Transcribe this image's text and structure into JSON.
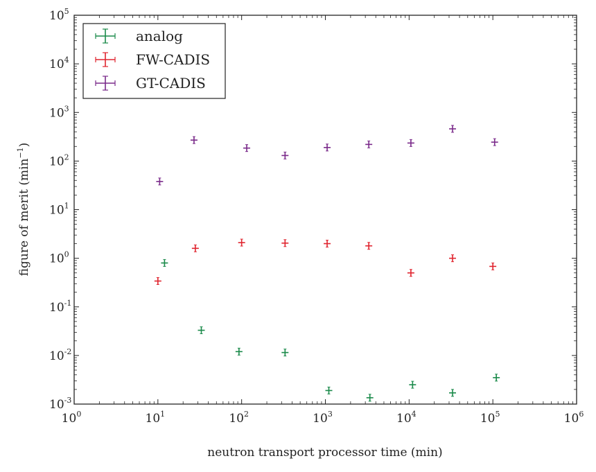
{
  "chart_data": {
    "type": "scatter",
    "title": "",
    "xlabel": "neutron transport processor time (min)",
    "ylabel": "figure of merit (min",
    "ylabel_sup": "−1",
    "ylabel_close": ")",
    "xscale": "log",
    "yscale": "log",
    "xlim": [
      1,
      1000000
    ],
    "ylim": [
      0.001,
      100000
    ],
    "x_ticks": [
      {
        "base": "10",
        "exp": "0",
        "value": 1
      },
      {
        "base": "10",
        "exp": "1",
        "value": 10
      },
      {
        "base": "10",
        "exp": "2",
        "value": 100
      },
      {
        "base": "10",
        "exp": "3",
        "value": 1000
      },
      {
        "base": "10",
        "exp": "4",
        "value": 10000
      },
      {
        "base": "10",
        "exp": "5",
        "value": 100000
      },
      {
        "base": "10",
        "exp": "6",
        "value": 1000000
      }
    ],
    "y_ticks": [
      {
        "base": "10",
        "exp": "-3",
        "value": 0.001
      },
      {
        "base": "10",
        "exp": "-2",
        "value": 0.01
      },
      {
        "base": "10",
        "exp": "-1",
        "value": 0.1
      },
      {
        "base": "10",
        "exp": "0",
        "value": 1
      },
      {
        "base": "10",
        "exp": "1",
        "value": 10
      },
      {
        "base": "10",
        "exp": "2",
        "value": 100
      },
      {
        "base": "10",
        "exp": "3",
        "value": 1000
      },
      {
        "base": "10",
        "exp": "4",
        "value": 10000
      },
      {
        "base": "10",
        "exp": "5",
        "value": 100000
      }
    ],
    "legend_position": "top-left",
    "grid": false,
    "series": [
      {
        "name": "analog",
        "color": "#1a8a4a",
        "points": [
          {
            "x": 12,
            "y": 0.8
          },
          {
            "x": 33,
            "y": 0.033
          },
          {
            "x": 93,
            "y": 0.012
          },
          {
            "x": 330,
            "y": 0.0115
          },
          {
            "x": 1100,
            "y": 0.0019
          },
          {
            "x": 3400,
            "y": 0.00135
          },
          {
            "x": 11000,
            "y": 0.0025
          },
          {
            "x": 33000,
            "y": 0.0017
          },
          {
            "x": 110000,
            "y": 0.0035
          }
        ]
      },
      {
        "name": "FW-CADIS",
        "color": "#e0242e",
        "points": [
          {
            "x": 10,
            "y": 0.34
          },
          {
            "x": 28,
            "y": 1.6
          },
          {
            "x": 100,
            "y": 2.1
          },
          {
            "x": 330,
            "y": 2.05
          },
          {
            "x": 1050,
            "y": 2.0
          },
          {
            "x": 3300,
            "y": 1.8
          },
          {
            "x": 10500,
            "y": 0.5
          },
          {
            "x": 33000,
            "y": 1.0
          },
          {
            "x": 100000,
            "y": 0.68
          }
        ]
      },
      {
        "name": "GT-CADIS",
        "color": "#7a2a8a",
        "points": [
          {
            "x": 10.5,
            "y": 38
          },
          {
            "x": 27,
            "y": 270
          },
          {
            "x": 115,
            "y": 185
          },
          {
            "x": 330,
            "y": 130
          },
          {
            "x": 1050,
            "y": 190
          },
          {
            "x": 3300,
            "y": 220
          },
          {
            "x": 10500,
            "y": 235
          },
          {
            "x": 33000,
            "y": 460
          },
          {
            "x": 105000,
            "y": 245
          }
        ]
      }
    ]
  }
}
